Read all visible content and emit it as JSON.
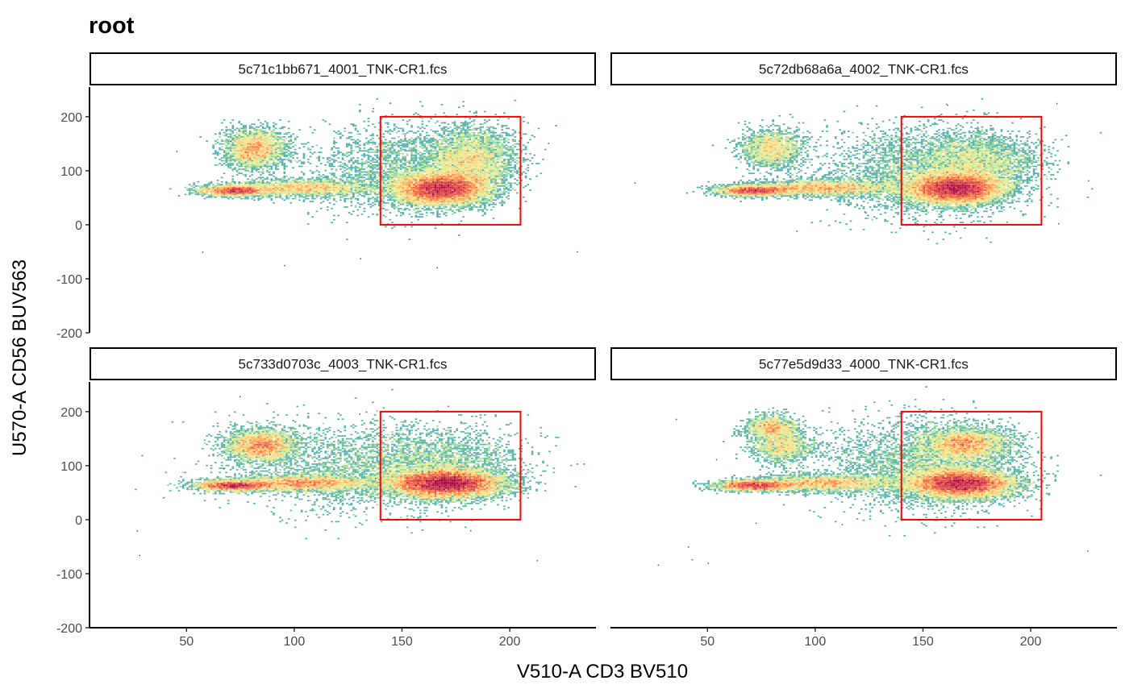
{
  "chart_data": {
    "type": "heatmap",
    "title": "root",
    "xlabel": "V510-A CD3 BV510",
    "ylabel": "U570-A CD56 BUV563",
    "xlim": [
      5,
      240
    ],
    "ylim": [
      -200,
      255
    ],
    "xticks": [
      50,
      100,
      150,
      200
    ],
    "yticks": [
      -200,
      -100,
      0,
      100,
      200
    ],
    "grid": false,
    "gate": {
      "x": [
        140,
        205
      ],
      "y": [
        0,
        200
      ],
      "color": "#ff0000"
    },
    "colormap": [
      "#5e4fa2",
      "#3288bd",
      "#66c2a5",
      "#abdda4",
      "#e6f598",
      "#fee08b",
      "#fdae61",
      "#f46d43",
      "#d53e4f",
      "#9e0142"
    ],
    "panels": [
      {
        "name": "5c71c1bb671_4001_TNK-CR1.fcs",
        "populations": [
          {
            "cx": 82,
            "cy": 140,
            "sx": 7,
            "sy": 18,
            "weight": 0.13
          },
          {
            "cx": 72,
            "cy": 63,
            "sx": 8,
            "sy": 5,
            "weight": 0.09
          },
          {
            "cx": 105,
            "cy": 68,
            "sx": 15,
            "sy": 8,
            "weight": 0.1
          },
          {
            "cx": 168,
            "cy": 67,
            "sx": 11,
            "sy": 15,
            "weight": 0.42
          },
          {
            "cx": 182,
            "cy": 120,
            "sx": 10,
            "sy": 28,
            "weight": 0.16
          },
          {
            "cx": 150,
            "cy": 105,
            "sx": 22,
            "sy": 40,
            "weight": 0.1
          }
        ]
      },
      {
        "name": "5c72db68a6a_4002_TNK-CR1.fcs",
        "populations": [
          {
            "cx": 80,
            "cy": 140,
            "sx": 7,
            "sy": 18,
            "weight": 0.08
          },
          {
            "cx": 72,
            "cy": 63,
            "sx": 9,
            "sy": 5,
            "weight": 0.1
          },
          {
            "cx": 105,
            "cy": 68,
            "sx": 16,
            "sy": 8,
            "weight": 0.12
          },
          {
            "cx": 165,
            "cy": 67,
            "sx": 11,
            "sy": 14,
            "weight": 0.45
          },
          {
            "cx": 175,
            "cy": 115,
            "sx": 14,
            "sy": 25,
            "weight": 0.12
          },
          {
            "cx": 150,
            "cy": 100,
            "sx": 22,
            "sy": 40,
            "weight": 0.13
          }
        ]
      },
      {
        "name": "5c733d0703c_4003_TNK-CR1.fcs",
        "populations": [
          {
            "cx": 85,
            "cy": 137,
            "sx": 8,
            "sy": 15,
            "weight": 0.14
          },
          {
            "cx": 72,
            "cy": 63,
            "sx": 9,
            "sy": 5,
            "weight": 0.1
          },
          {
            "cx": 105,
            "cy": 68,
            "sx": 16,
            "sy": 8,
            "weight": 0.12
          },
          {
            "cx": 170,
            "cy": 67,
            "sx": 13,
            "sy": 13,
            "weight": 0.46
          },
          {
            "cx": 165,
            "cy": 110,
            "sx": 20,
            "sy": 30,
            "weight": 0.08
          },
          {
            "cx": 130,
            "cy": 95,
            "sx": 30,
            "sy": 40,
            "weight": 0.1
          }
        ]
      },
      {
        "name": "5c77e5d9d33_4000_TNK-CR1.fcs",
        "populations": [
          {
            "cx": 80,
            "cy": 170,
            "sx": 6,
            "sy": 12,
            "weight": 0.06
          },
          {
            "cx": 85,
            "cy": 135,
            "sx": 7,
            "sy": 15,
            "weight": 0.06
          },
          {
            "cx": 72,
            "cy": 63,
            "sx": 9,
            "sy": 5,
            "weight": 0.1
          },
          {
            "cx": 105,
            "cy": 68,
            "sx": 16,
            "sy": 8,
            "weight": 0.1
          },
          {
            "cx": 168,
            "cy": 67,
            "sx": 12,
            "sy": 13,
            "weight": 0.4
          },
          {
            "cx": 170,
            "cy": 140,
            "sx": 10,
            "sy": 15,
            "weight": 0.14
          },
          {
            "cx": 150,
            "cy": 100,
            "sx": 22,
            "sy": 40,
            "weight": 0.14
          }
        ]
      }
    ]
  }
}
